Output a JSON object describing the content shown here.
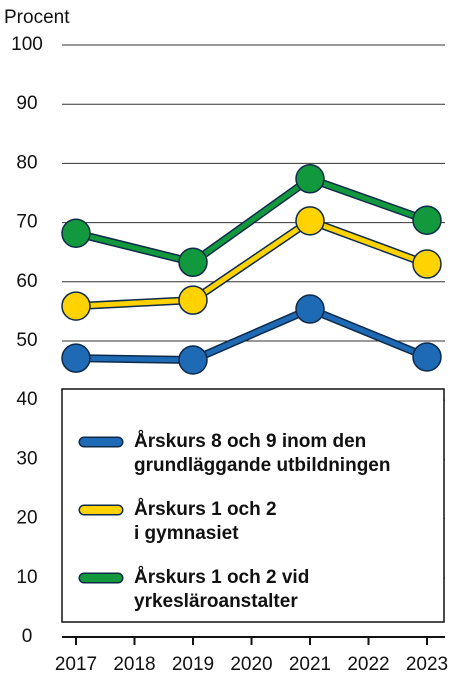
{
  "chart_data": {
    "type": "line",
    "y_axis_label": "Procent",
    "x": [
      2017,
      2019,
      2021,
      2023
    ],
    "xlim": [
      2017,
      2023
    ],
    "xticks": [
      2017,
      2018,
      2019,
      2020,
      2021,
      2022,
      2023
    ],
    "ylim": [
      0,
      100
    ],
    "yticks": [
      0,
      10,
      20,
      30,
      40,
      50,
      60,
      70,
      80,
      90,
      100
    ],
    "grid": true,
    "legend": "bottom",
    "series": [
      {
        "name": "Årskurs 8 och 9 inom den\ngrundläggande utbildningen",
        "color": "#1f6ab4",
        "values": [
          47.1,
          46.8,
          55.4,
          47.3
        ]
      },
      {
        "name": "Årskurs 1 och 2\ni gymnasiet",
        "color": "#ffd200",
        "values": [
          55.9,
          56.9,
          70.3,
          63.0
        ]
      },
      {
        "name": "Årskurs 1 och 2 vid\nyrkesläroanstalter",
        "color": "#13993d",
        "values": [
          68.2,
          63.3,
          77.4,
          70.4
        ]
      }
    ]
  }
}
